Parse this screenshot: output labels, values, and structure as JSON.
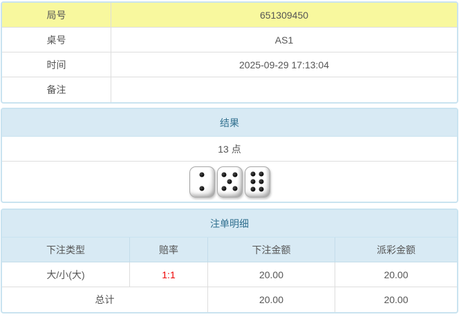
{
  "info": {
    "rows": [
      {
        "label": "局号",
        "value": "651309450"
      },
      {
        "label": "桌号",
        "value": "AS1"
      },
      {
        "label": "时间",
        "value": "2025-09-29 17:13:04"
      },
      {
        "label": "备注",
        "value": ""
      }
    ]
  },
  "result": {
    "title": "结果",
    "points": "13 点",
    "dice": [
      2,
      5,
      6
    ]
  },
  "bets": {
    "title": "注单明细",
    "columns": [
      "下注类型",
      "赔率",
      "下注金额",
      "派彩金额"
    ],
    "rows": [
      {
        "type": "大/小(大)",
        "odds": "1:1",
        "bet": "20.00",
        "payout": "20.00"
      }
    ],
    "total": {
      "label": "总计",
      "bet": "20.00",
      "payout": "20.00"
    }
  },
  "colors": {
    "highlight_yellow": "#f8f89e",
    "header_band_bg": "#d8eaf4",
    "header_band_text": "#31708f",
    "section_border": "#c9e3f0",
    "odds_red": "#ee0000",
    "body_text": "#555555"
  }
}
